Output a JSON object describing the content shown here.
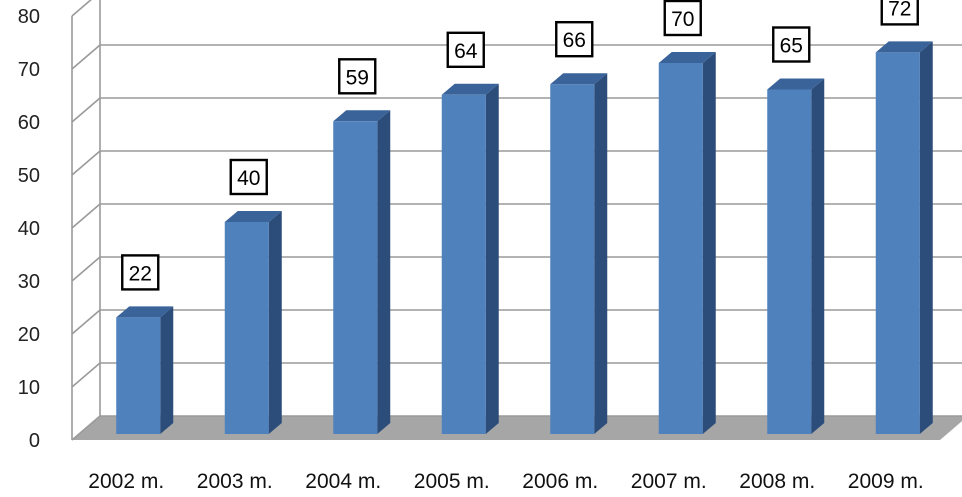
{
  "chart_data": {
    "type": "bar",
    "title": "",
    "xlabel": "",
    "ylabel": "",
    "categories": [
      "2002 m.",
      "2003 m.",
      "2004 m.",
      "2005 m.",
      "2006 m.",
      "2007 m.",
      "2008 m.",
      "2009 m."
    ],
    "values": [
      22,
      40,
      59,
      64,
      66,
      70,
      65,
      72
    ],
    "data_labels": [
      "22",
      "40",
      "59",
      "64",
      "66",
      "70",
      "65",
      "72"
    ],
    "yticks": [
      "0",
      "10",
      "20",
      "30",
      "40",
      "50",
      "60",
      "70",
      "80"
    ],
    "ylim": [
      0,
      80
    ],
    "grid": true,
    "legend": "none",
    "style": "3d-columns",
    "colors": {
      "bar_front": "#4f81bd",
      "bar_side": "#2c4d7a",
      "bar_top": "#3a6399",
      "floor": "#a6a6a6",
      "gridline": "#9a9a9a"
    }
  }
}
